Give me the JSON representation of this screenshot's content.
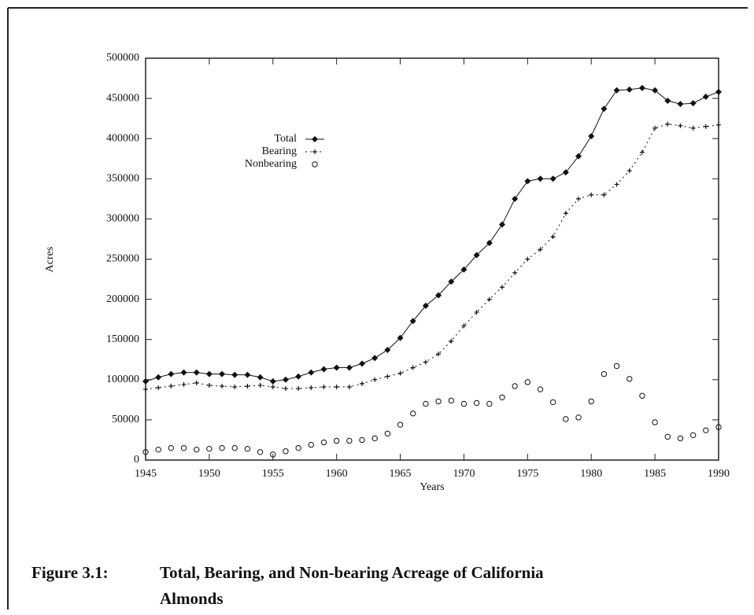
{
  "chart_data": {
    "type": "line",
    "caption_label": "Figure 3.1:",
    "caption_line1": "Total, Bearing, and Non-bearing Acreage of California",
    "caption_line2": "Almonds",
    "xlabel": "Years",
    "ylabel": "Acres",
    "x": [
      1945,
      1946,
      1947,
      1948,
      1949,
      1950,
      1951,
      1952,
      1953,
      1954,
      1955,
      1956,
      1957,
      1958,
      1959,
      1960,
      1961,
      1962,
      1963,
      1964,
      1965,
      1966,
      1967,
      1968,
      1969,
      1970,
      1971,
      1972,
      1973,
      1974,
      1975,
      1976,
      1977,
      1978,
      1979,
      1980,
      1981,
      1982,
      1983,
      1984,
      1985,
      1986,
      1987,
      1988,
      1989,
      1990
    ],
    "series": [
      {
        "name": "Total",
        "color": "#111111",
        "values": [
          98000,
          103000,
          107000,
          109000,
          109000,
          107000,
          107000,
          106000,
          106000,
          103000,
          98000,
          100000,
          104000,
          109000,
          113000,
          115000,
          115000,
          120000,
          127000,
          137000,
          152000,
          173000,
          192000,
          205000,
          222000,
          237000,
          255000,
          270000,
          293000,
          325000,
          347000,
          350000,
          350000,
          358000,
          378000,
          403000,
          437000,
          460000,
          461000,
          463000,
          460000,
          447000,
          443000,
          444000,
          452000,
          458000
        ]
      },
      {
        "name": "Bearing",
        "color": "#111111",
        "values": [
          88000,
          90000,
          92000,
          94000,
          96000,
          93000,
          92000,
          91000,
          92000,
          93000,
          91000,
          89000,
          89000,
          90000,
          91000,
          91000,
          91000,
          95000,
          100000,
          104000,
          108000,
          115000,
          122000,
          132000,
          148000,
          167000,
          184000,
          200000,
          215000,
          233000,
          250000,
          262000,
          278000,
          307000,
          325000,
          330000,
          330000,
          343000,
          360000,
          383000,
          413000,
          418000,
          416000,
          413000,
          415000,
          417000
        ]
      },
      {
        "name": "Nonbearing",
        "color": "#111111",
        "values": [
          10000,
          13000,
          15000,
          15000,
          13000,
          14000,
          15000,
          15000,
          14000,
          10000,
          7000,
          11000,
          15000,
          19000,
          22000,
          24000,
          24000,
          25000,
          27000,
          33000,
          44000,
          58000,
          70000,
          73000,
          74000,
          70000,
          71000,
          70000,
          78000,
          92000,
          97000,
          88000,
          72000,
          51000,
          53000,
          73000,
          107000,
          117000,
          101000,
          80000,
          47000,
          29000,
          27000,
          31000,
          37000,
          41000
        ]
      }
    ],
    "xlim": [
      1945,
      1990
    ],
    "xticks": [
      1945,
      1950,
      1955,
      1960,
      1965,
      1970,
      1975,
      1980,
      1985,
      1990
    ],
    "ylim": [
      0,
      500000
    ],
    "yticks": [
      0,
      50000,
      100000,
      150000,
      200000,
      250000,
      300000,
      350000,
      400000,
      450000,
      500000
    ]
  }
}
